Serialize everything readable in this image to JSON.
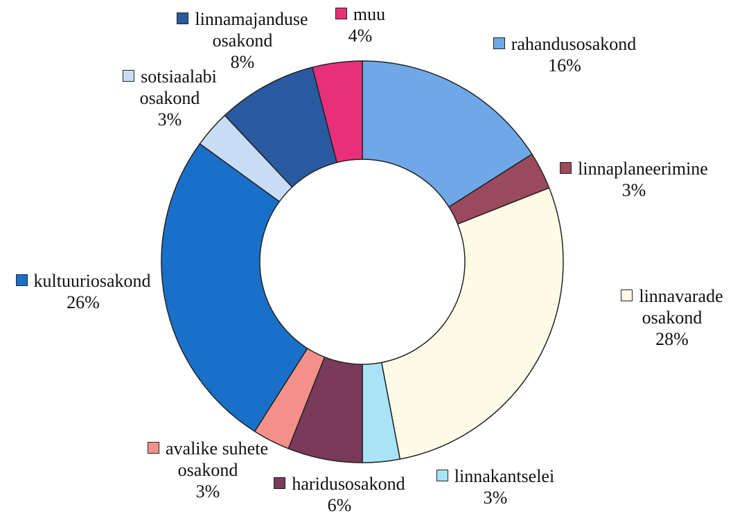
{
  "chart_data": {
    "type": "donut",
    "categories": [
      "rahandusosakond",
      "linnaplaneerimine",
      "linnavarade osakond",
      "linnakantselei",
      "haridusosakond",
      "avalike suhete osakond",
      "kultuuriosakond",
      "sotsiaalabi osakond",
      "linnamajanduse osakond",
      "muu"
    ],
    "values": [
      16,
      3,
      28,
      3,
      6,
      3,
      26,
      3,
      8,
      4
    ],
    "value_labels": [
      "16%",
      "3%",
      "28%",
      "3%",
      "6%",
      "3%",
      "26%",
      "3%",
      "8%",
      "4%"
    ],
    "colors": [
      "#6fa8e8",
      "#9b4a5e",
      "#fdfbe6",
      "#a8e4f5",
      "#7a3a5a",
      "#f4908a",
      "#1a70c8",
      "#c8dcf5",
      "#2a5aa0",
      "#e8307a"
    ]
  }
}
